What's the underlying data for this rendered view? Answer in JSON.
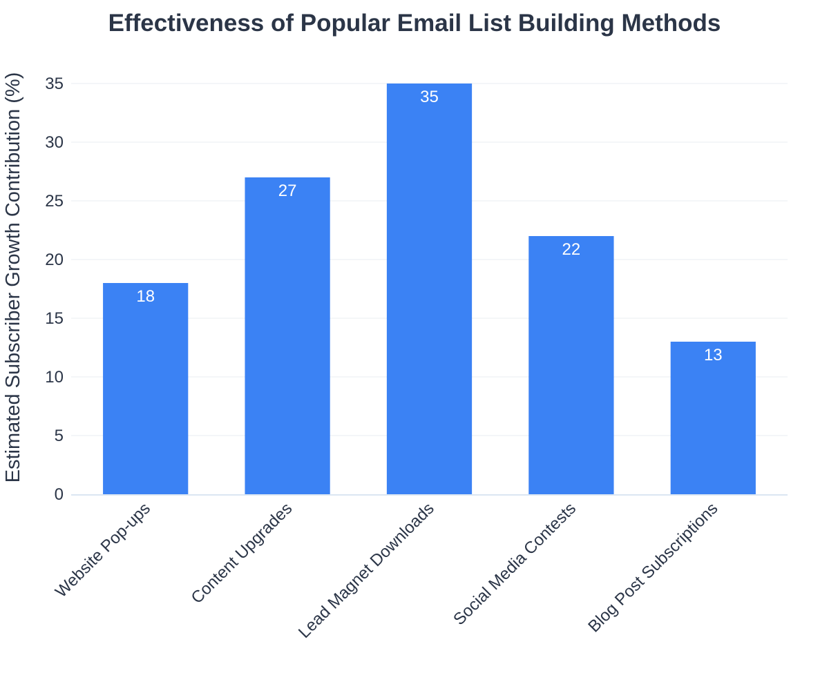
{
  "chart_data": {
    "type": "bar",
    "title": "Effectiveness of Popular Email List Building Methods",
    "xlabel": "",
    "ylabel": "Estimated Subscriber Growth Contribution (%)",
    "categories": [
      "Website Pop-ups",
      "Content Upgrades",
      "Lead Magnet Downloads",
      "Social Media Contests",
      "Blog Post Subscriptions"
    ],
    "values": [
      18,
      27,
      35,
      22,
      13
    ],
    "ylim": [
      0,
      35
    ],
    "yticks": [
      0,
      5,
      10,
      15,
      20,
      25,
      30,
      35
    ],
    "data_labels": [
      "18",
      "27",
      "35",
      "22",
      "13"
    ],
    "grid": true,
    "legend": "none",
    "bar_color": "#3b82f4"
  }
}
